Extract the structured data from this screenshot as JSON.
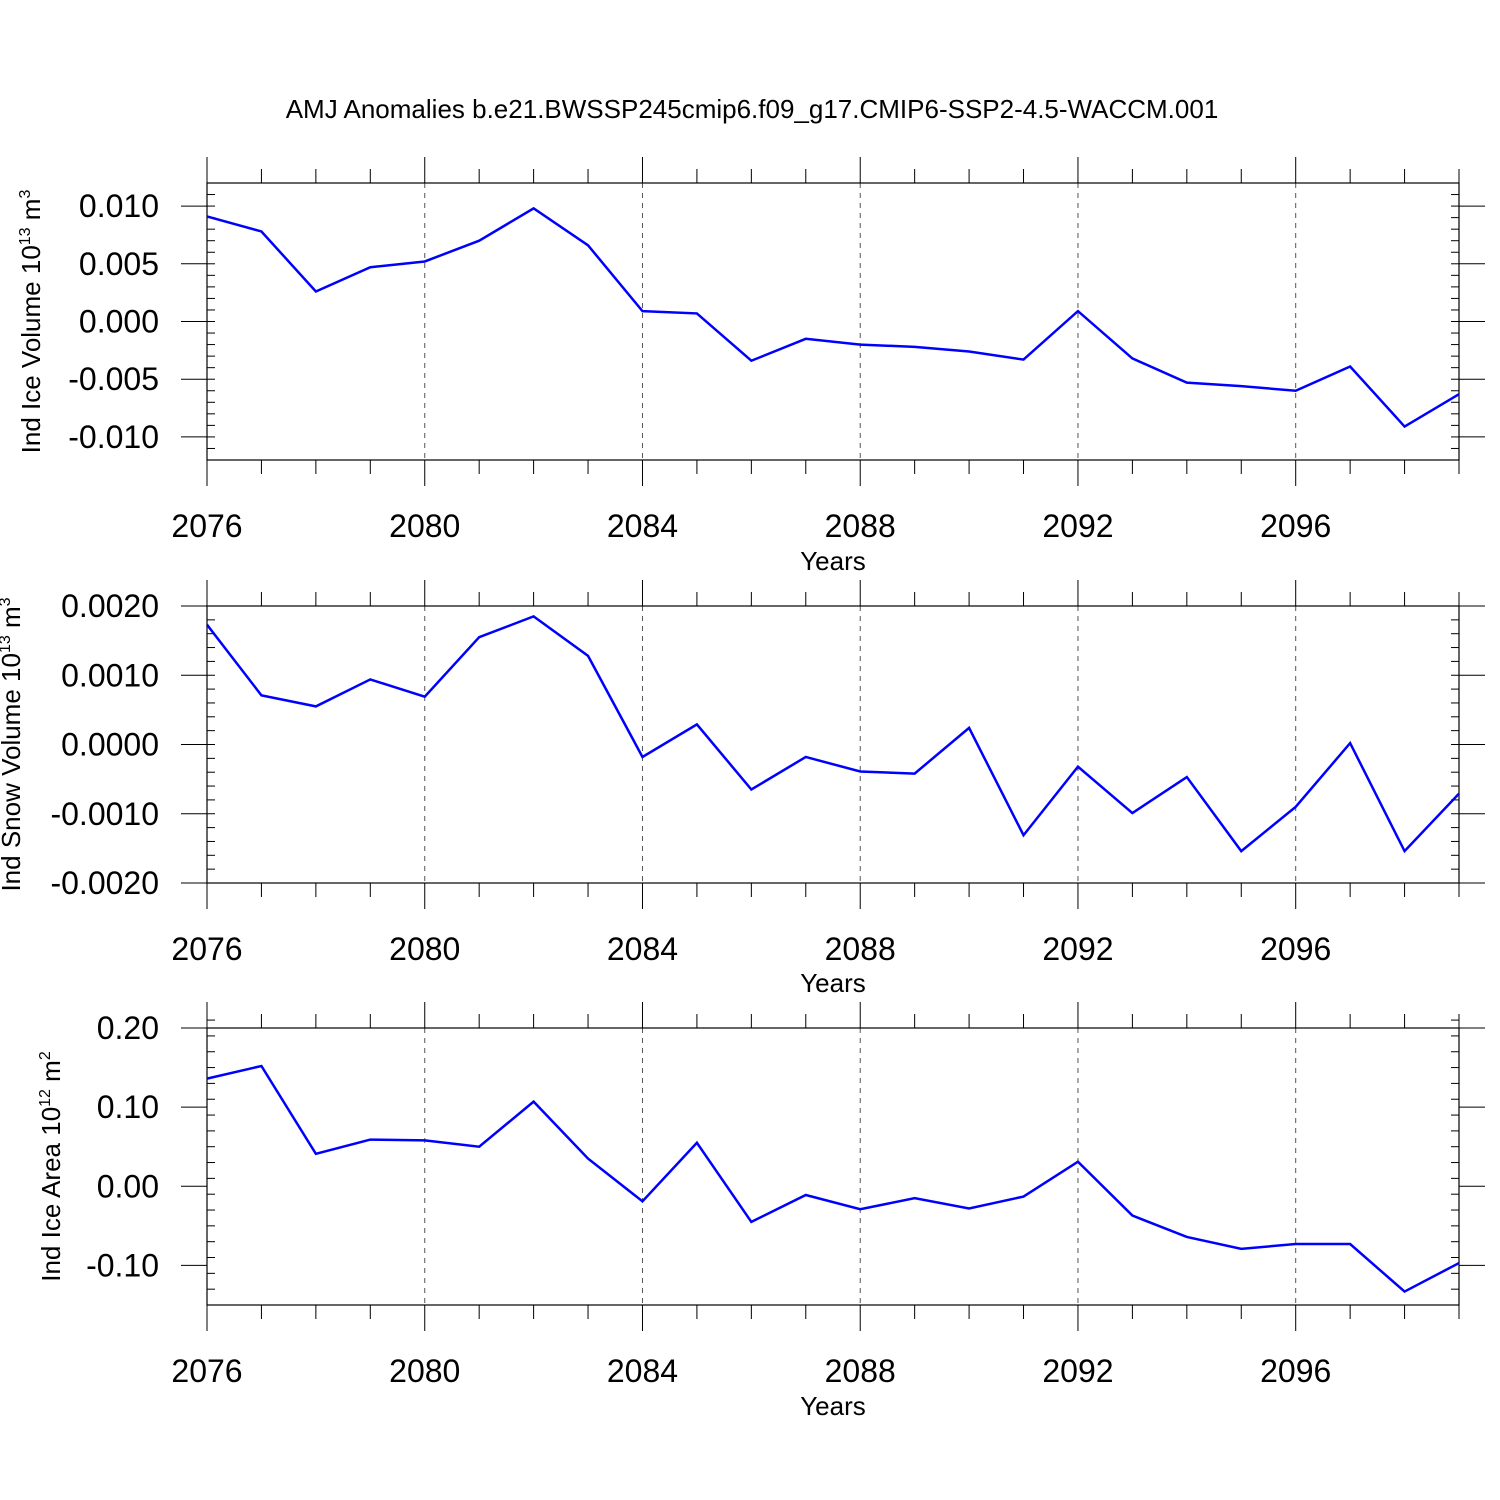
{
  "title": "AMJ Anomalies b.e21.BWSSP245cmip6.f09_g17.CMIP6-SSP2-4.5-WACCM.001",
  "colors": {
    "line": "#0000ff",
    "frame": "#000000",
    "grid": "#555555"
  },
  "chart_data": [
    {
      "type": "line",
      "ylabel": "Ind Ice Volume",
      "ylabel_unit": {
        "base": "10",
        "exp": "13",
        "unit": "m",
        "unit_exp": "3"
      },
      "xlabel": "Years",
      "xlim": [
        2076,
        2099
      ],
      "ylim": [
        -0.012,
        0.012
      ],
      "grid_x": true,
      "x_major_ticks": [
        2076,
        2080,
        2084,
        2088,
        2092,
        2096
      ],
      "x_tick_labels": [
        "2076",
        "2080",
        "2084",
        "2088",
        "2092",
        "2096"
      ],
      "y_major_ticks": [
        0.01,
        0.005,
        0.0,
        -0.005,
        -0.01
      ],
      "y_tick_labels": [
        "0.010",
        "0.005",
        "0.000",
        "-0.005",
        "-0.010"
      ],
      "y_minor_step": 0.001,
      "x": [
        2076,
        2077,
        2078,
        2079,
        2080,
        2081,
        2082,
        2083,
        2084,
        2085,
        2086,
        2087,
        2088,
        2089,
        2090,
        2091,
        2092,
        2093,
        2094,
        2095,
        2096,
        2097,
        2098,
        2099
      ],
      "series": [
        {
          "values": [
            0.0091,
            0.0078,
            0.0026,
            0.0047,
            0.0052,
            0.007,
            0.0098,
            0.0066,
            0.0009,
            0.0007,
            -0.0034,
            -0.0015,
            -0.002,
            -0.0022,
            -0.0026,
            -0.0033,
            0.0009,
            -0.0032,
            -0.0053,
            -0.0056,
            -0.006,
            -0.0039,
            -0.0091,
            -0.0063
          ]
        }
      ]
    },
    {
      "type": "line",
      "ylabel": "Ind Snow Volume",
      "ylabel_unit": {
        "base": "10",
        "exp": "13",
        "unit": "m",
        "unit_exp": "3"
      },
      "xlabel": "Years",
      "xlim": [
        2076,
        2099
      ],
      "ylim": [
        -0.002,
        0.002
      ],
      "grid_x": true,
      "x_major_ticks": [
        2076,
        2080,
        2084,
        2088,
        2092,
        2096
      ],
      "x_tick_labels": [
        "2076",
        "2080",
        "2084",
        "2088",
        "2092",
        "2096"
      ],
      "y_major_ticks": [
        0.002,
        0.001,
        0.0,
        -0.001,
        -0.002
      ],
      "y_tick_labels": [
        "0.0020",
        "0.0010",
        "0.0000",
        "-0.0010",
        "-0.0020"
      ],
      "y_minor_step": 0.0002,
      "x": [
        2076,
        2077,
        2078,
        2079,
        2080,
        2081,
        2082,
        2083,
        2084,
        2085,
        2086,
        2087,
        2088,
        2089,
        2090,
        2091,
        2092,
        2093,
        2094,
        2095,
        2096,
        2097,
        2098,
        2099
      ],
      "series": [
        {
          "values": [
            0.00173,
            0.00071,
            0.00055,
            0.00094,
            0.00069,
            0.00155,
            0.00185,
            0.00128,
            -0.00018,
            0.00029,
            -0.00065,
            -0.00018,
            -0.00039,
            -0.00042,
            0.00024,
            -0.00131,
            -0.00032,
            -0.00099,
            -0.00047,
            -0.00154,
            -0.0009,
            2e-05,
            -0.00154,
            -0.00071
          ]
        }
      ]
    },
    {
      "type": "line",
      "ylabel": "Ind Ice Area",
      "ylabel_unit": {
        "base": "10",
        "exp": "12",
        "unit": "m",
        "unit_exp": "2"
      },
      "xlabel": "Years",
      "xlim": [
        2076,
        2099
      ],
      "ylim": [
        -0.15,
        0.2
      ],
      "grid_x": true,
      "x_major_ticks": [
        2076,
        2080,
        2084,
        2088,
        2092,
        2096
      ],
      "x_tick_labels": [
        "2076",
        "2080",
        "2084",
        "2088",
        "2092",
        "2096"
      ],
      "y_major_ticks": [
        0.2,
        0.1,
        0.0,
        -0.1
      ],
      "y_tick_labels": [
        "0.20",
        "0.10",
        "0.00",
        "-0.10"
      ],
      "y_minor_step": 0.02,
      "x": [
        2076,
        2077,
        2078,
        2079,
        2080,
        2081,
        2082,
        2083,
        2084,
        2085,
        2086,
        2087,
        2088,
        2089,
        2090,
        2091,
        2092,
        2093,
        2094,
        2095,
        2096,
        2097,
        2098,
        2099
      ],
      "series": [
        {
          "values": [
            0.136,
            0.152,
            0.041,
            0.059,
            0.058,
            0.05,
            0.107,
            0.035,
            -0.019,
            0.055,
            -0.045,
            -0.011,
            -0.029,
            -0.015,
            -0.028,
            -0.013,
            0.031,
            -0.037,
            -0.064,
            -0.079,
            -0.073,
            -0.073,
            -0.133,
            -0.097
          ]
        }
      ]
    }
  ]
}
